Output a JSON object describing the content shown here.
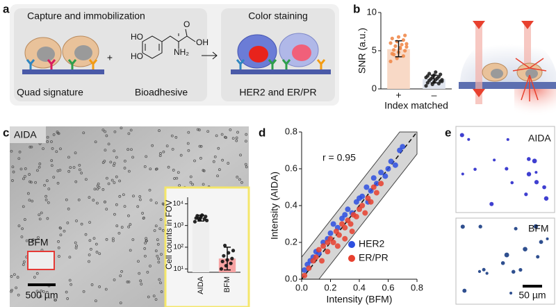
{
  "panel_labels": [
    "a",
    "b",
    "c",
    "d",
    "e"
  ],
  "panel_a": {
    "title_left": "Capture and immobilization",
    "title_right": "Color staining",
    "plus": "+",
    "label_left": "Quad signature",
    "label_mid": "Bioadhesive",
    "label_right": "HER2 and ER/PR",
    "molecule": {
      "ho_top": "HO",
      "ho_bottom": "HO",
      "oh": "OH",
      "o": "O",
      "nh2": "NH₂"
    }
  },
  "panel_c": {
    "label": "AIDA",
    "region_label": "BFM",
    "scale": "500 µm"
  },
  "panel_e": {
    "top_label": "AIDA",
    "bottom_label": "BFM",
    "scale": "50 µm"
  },
  "chart_data": [
    {
      "type": "bar",
      "ylabel": "SNR (a.u.)",
      "xlabel": "Index matched",
      "categories": [
        "+",
        "–"
      ],
      "values": [
        5.2,
        1.3
      ],
      "colors": [
        "#f8d9c6",
        "#dfe4ee"
      ],
      "point_colors": [
        "#f08a4b",
        "#222222"
      ],
      "error_bars": [
        [
          4.2,
          6.3
        ],
        [
          0.8,
          1.8
        ]
      ],
      "points": [
        [
          3.6,
          4.0,
          4.3,
          4.6,
          4.8,
          5.0,
          5.1,
          5.3,
          5.5,
          5.6,
          5.8,
          6.0,
          6.2,
          6.4,
          6.6,
          6.8,
          7.0,
          4.5,
          5.4,
          5.9
        ],
        [
          0.4,
          0.6,
          0.7,
          0.8,
          0.9,
          1.0,
          1.1,
          1.2,
          1.2,
          1.3,
          1.4,
          1.5,
          1.5,
          1.6,
          1.7,
          1.8,
          1.9,
          2.0,
          2.2,
          1.0
        ]
      ],
      "ylim": [
        0,
        10
      ],
      "yticks": [
        0,
        5,
        10
      ],
      "log_scale": false
    },
    {
      "type": "bar",
      "ylabel": "Cell counts in FOV",
      "categories": [
        "AIDA",
        "BFM"
      ],
      "values": [
        2200,
        30
      ],
      "colors": [
        "#eeeeee",
        "#f6a3a3"
      ],
      "point_colors": [
        "#111111",
        "#111111"
      ],
      "error_bars": [
        [
          1600,
          3000
        ],
        [
          9,
          100
        ]
      ],
      "points": [
        [
          1500,
          1800,
          2000,
          2200,
          2400,
          2600,
          2800,
          3000,
          1700,
          2100
        ],
        [
          10,
          14,
          18,
          22,
          26,
          30,
          40,
          55,
          70,
          120
        ]
      ],
      "ylim": [
        7,
        20000
      ],
      "yticks": [
        {
          "value": 10,
          "label": "10¹"
        },
        {
          "value": 100,
          "label": "10²"
        },
        {
          "value": 1000,
          "label": "10³"
        },
        {
          "value": 10000,
          "label": "10⁴"
        }
      ],
      "log_scale": true
    },
    {
      "type": "scatter",
      "xlabel": "Intensity (BFM)",
      "ylabel": "Intensity (AIDA)",
      "annotation": "r = 0.95",
      "legend": "lower right",
      "xlim": [
        0,
        0.8
      ],
      "ylim": [
        0,
        0.8
      ],
      "xticks": [
        {
          "value": 0,
          "label": "0.0"
        },
        0.2,
        0.4,
        0.6,
        0.8
      ],
      "yticks": [
        {
          "value": 0,
          "label": "0.0"
        },
        0.2,
        0.4,
        0.6,
        0.8
      ],
      "series": [
        {
          "name": "HER2",
          "color": "#2d4fe0",
          "x": [
            0.02,
            0.04,
            0.06,
            0.08,
            0.1,
            0.12,
            0.15,
            0.18,
            0.2,
            0.22,
            0.25,
            0.28,
            0.3,
            0.32,
            0.35,
            0.38,
            0.4,
            0.42,
            0.45,
            0.48,
            0.5,
            0.52,
            0.55,
            0.58,
            0.6,
            0.62,
            0.65,
            0.68,
            0.7,
            0.46
          ],
          "y": [
            0.05,
            0.08,
            0.1,
            0.12,
            0.15,
            0.14,
            0.2,
            0.22,
            0.25,
            0.3,
            0.28,
            0.33,
            0.35,
            0.38,
            0.36,
            0.42,
            0.44,
            0.45,
            0.5,
            0.48,
            0.55,
            0.52,
            0.58,
            0.56,
            0.6,
            0.64,
            0.62,
            0.7,
            0.72,
            0.42
          ]
        },
        {
          "name": "ER/PR",
          "color": "#e8402e",
          "x": [
            0.02,
            0.05,
            0.08,
            0.1,
            0.12,
            0.15,
            0.18,
            0.2,
            0.22,
            0.24,
            0.26,
            0.28,
            0.3,
            0.32,
            0.34,
            0.36,
            0.38,
            0.4,
            0.42,
            0.44,
            0.46,
            0.48,
            0.5,
            0.52,
            0.55,
            0.3,
            0.25,
            0.35,
            0.18,
            0.14
          ],
          "y": [
            0.02,
            0.06,
            0.1,
            0.12,
            0.16,
            0.18,
            0.15,
            0.22,
            0.2,
            0.26,
            0.24,
            0.3,
            0.28,
            0.32,
            0.3,
            0.35,
            0.34,
            0.38,
            0.4,
            0.36,
            0.44,
            0.42,
            0.5,
            0.47,
            0.52,
            0.22,
            0.18,
            0.26,
            0.2,
            0.1
          ]
        }
      ]
    }
  ]
}
